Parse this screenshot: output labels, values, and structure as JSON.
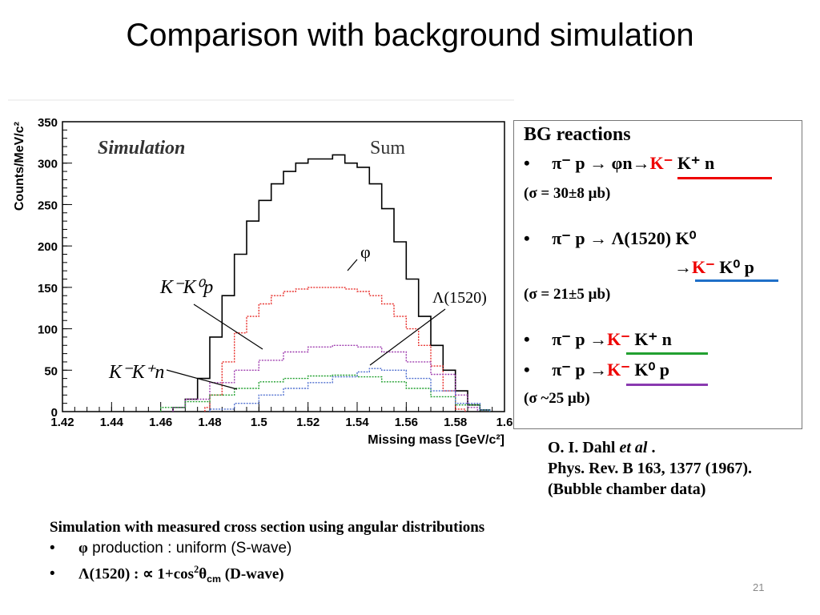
{
  "title": "Comparison with background simulation",
  "page_number": "21",
  "plot": {
    "sim_label": "Simulation",
    "sum_label": "Sum",
    "phi_label": "φ",
    "lambda_label": "Λ(1520)",
    "kkp_label": "K⁻K⁰p",
    "kkn_label": "K⁻K⁺n"
  },
  "bg_box": {
    "heading": "BG reactions",
    "r1_reaction": "π⁻ p → φn→",
    "r1_k": "K⁻",
    "r1_rest": " K⁺ n",
    "r1_sigma": "(σ = 30±8 μb)",
    "r2_reaction": "π⁻ p → Λ(1520) K⁰",
    "r2_arrow": "→",
    "r2_k": "K⁻",
    "r2_rest": " K⁰ p",
    "r2_sigma": "(σ = 21±5 μb)",
    "r3_reaction": "π⁻ p →",
    "r3_k": "K⁻",
    "r3_rest": " K⁺ n",
    "r4_reaction": "π⁻ p →",
    "r4_k": "K⁻",
    "r4_rest": " K⁰ p",
    "r34_sigma": "(σ ~25 μb)",
    "bullet": "•"
  },
  "reference": {
    "line1_author": "O. I. Dahl ",
    "line1_etal": "et al",
    "line1_end": " .",
    "line2": "Phys. Rev. B 163, 1377 (1967).",
    "line3": "(Bubble chamber data)"
  },
  "bottom": {
    "heading": "Simulation with measured cross section using angular distributions",
    "b1_symbol": "φ",
    "b1_text": " production : uniform (S-wave)",
    "b2_start": "Λ(1520) : ∝ 1+cos",
    "b2_sup": "2",
    "b2_theta": "θ",
    "b2_sub": "cm",
    "b2_end": " (D-wave)"
  },
  "chart_data": {
    "type": "line",
    "xlabel": "Missing mass [GeV/c²]",
    "ylabel": "Counts/MeV/c²",
    "xlim": [
      1.42,
      1.6
    ],
    "ylim": [
      0,
      350
    ],
    "x_ticks": [
      "1.42",
      "1.44",
      "1.46",
      "1.48",
      "1.5",
      "1.52",
      "1.54",
      "1.56",
      "1.58",
      "1.6"
    ],
    "y_ticks": [
      "0",
      "50",
      "100",
      "150",
      "200",
      "250",
      "300",
      "350"
    ],
    "series": [
      {
        "name": "Sum",
        "color": "#000000",
        "x": [
          1.465,
          1.47,
          1.475,
          1.48,
          1.485,
          1.49,
          1.495,
          1.5,
          1.505,
          1.51,
          1.515,
          1.52,
          1.525,
          1.53,
          1.535,
          1.54,
          1.545,
          1.55,
          1.555,
          1.56,
          1.565,
          1.57,
          1.575,
          1.58,
          1.585,
          1.59
        ],
        "values": [
          5,
          15,
          40,
          90,
          140,
          190,
          230,
          255,
          275,
          290,
          300,
          305,
          305,
          310,
          300,
          295,
          275,
          245,
          205,
          160,
          115,
          80,
          50,
          25,
          8,
          2
        ]
      },
      {
        "name": "φ",
        "color": "#e8322e",
        "x": [
          1.478,
          1.48,
          1.485,
          1.49,
          1.495,
          1.5,
          1.505,
          1.51,
          1.515,
          1.52,
          1.525,
          1.53,
          1.535,
          1.54,
          1.545,
          1.55,
          1.555,
          1.56,
          1.565,
          1.57,
          1.575,
          1.58
        ],
        "values": [
          5,
          20,
          60,
          95,
          115,
          130,
          140,
          145,
          148,
          150,
          150,
          150,
          148,
          145,
          140,
          130,
          115,
          100,
          80,
          55,
          25,
          3
        ]
      },
      {
        "name": "K⁻K⁰p",
        "color": "#a040b0",
        "x": [
          1.465,
          1.47,
          1.48,
          1.49,
          1.5,
          1.51,
          1.52,
          1.53,
          1.54,
          1.55,
          1.56,
          1.57,
          1.58,
          1.585
        ],
        "values": [
          5,
          15,
          35,
          50,
          62,
          72,
          78,
          80,
          78,
          72,
          60,
          45,
          20,
          5
        ]
      },
      {
        "name": "K⁻K⁺n",
        "color": "#22a030",
        "x": [
          1.46,
          1.47,
          1.48,
          1.49,
          1.5,
          1.51,
          1.52,
          1.53,
          1.54,
          1.55,
          1.56,
          1.57,
          1.58,
          1.59
        ],
        "values": [
          5,
          12,
          20,
          28,
          36,
          40,
          43,
          44,
          42,
          36,
          28,
          18,
          8,
          2
        ]
      },
      {
        "name": "Λ(1520)",
        "color": "#5070d0",
        "x": [
          1.48,
          1.49,
          1.5,
          1.51,
          1.52,
          1.53,
          1.54,
          1.545,
          1.55,
          1.56,
          1.57,
          1.58,
          1.59
        ],
        "values": [
          3,
          10,
          20,
          28,
          35,
          42,
          48,
          52,
          50,
          40,
          25,
          10,
          2
        ]
      }
    ]
  }
}
